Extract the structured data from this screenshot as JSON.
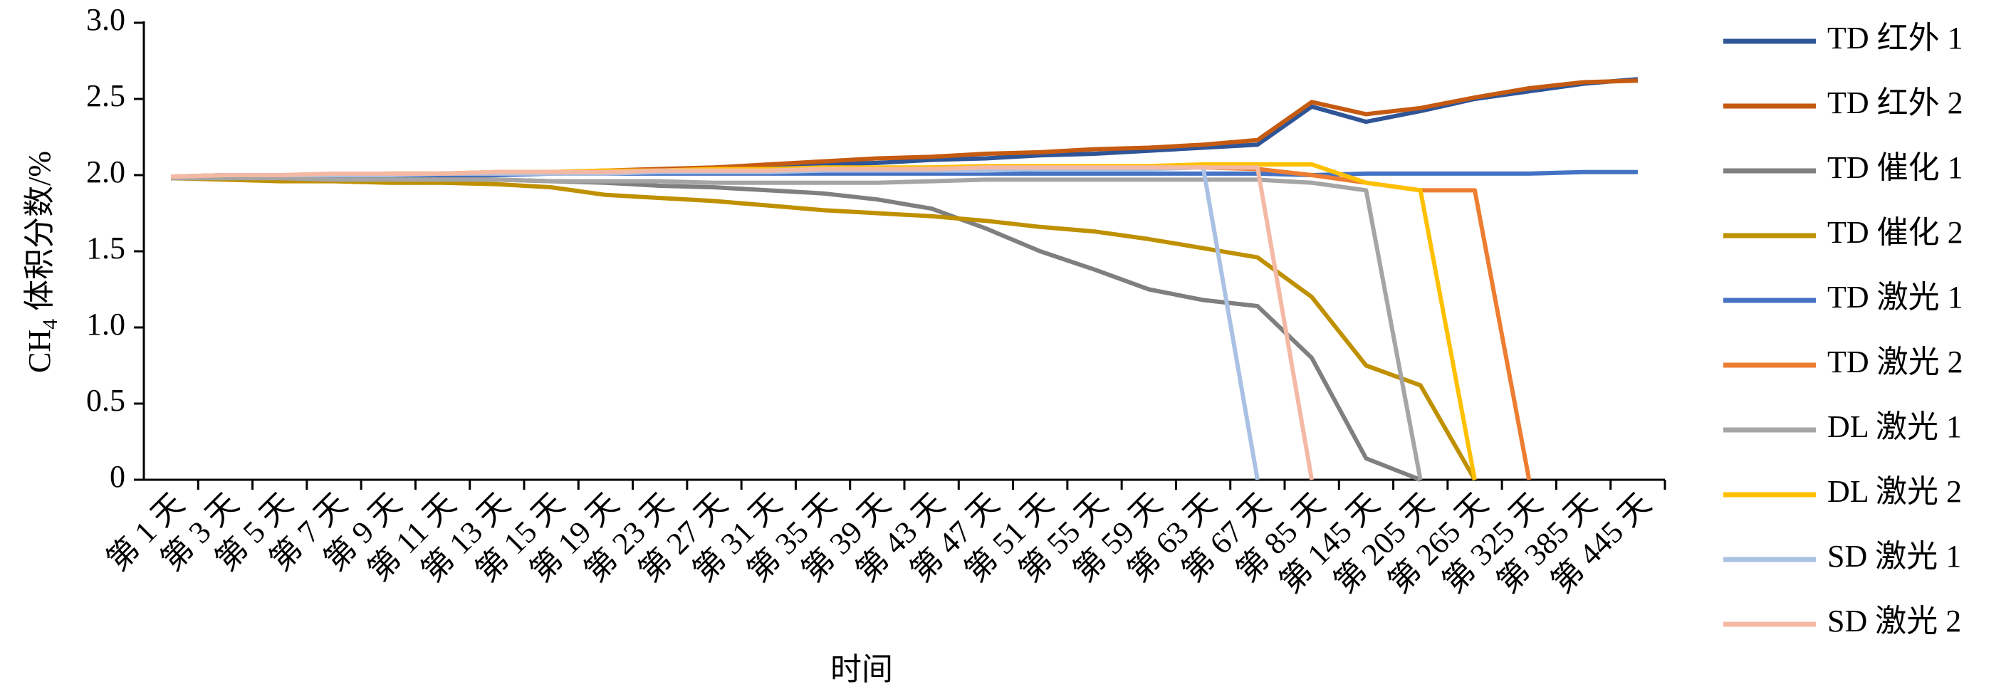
{
  "chart_data": {
    "type": "line",
    "ylabel": {
      "main": "CH",
      "sub": "4",
      "rest": " 体积分数/%"
    },
    "xlabel": "时间",
    "categories": [
      "第 1 天",
      "第 3 天",
      "第 5 天",
      "第 7 天",
      "第 9 天",
      "第 11 天",
      "第 13 天",
      "第 15 天",
      "第 19 天",
      "第 23 天",
      "第 27 天",
      "第 31 天",
      "第 35 天",
      "第 39 天",
      "第 43 天",
      "第 47 天",
      "第 51 天",
      "第 55 天",
      "第 59 天",
      "第 63 天",
      "第 67 天",
      "第 85 天",
      "第 145 天",
      "第 205 天",
      "第 265 天",
      "第 325 天",
      "第 385 天",
      "第 445 天"
    ],
    "ylim": [
      0,
      3
    ],
    "yticks": [
      0,
      0.5,
      {
        "value": 1,
        "label": "1.0"
      },
      1.5,
      {
        "value": 2,
        "label": "2.0"
      },
      2.5,
      {
        "value": 3,
        "label": "3.0"
      }
    ],
    "legend": "right",
    "series": [
      {
        "name": "TD 红外 1",
        "color": "#2f5597",
        "values": [
          1.98,
          1.99,
          1.99,
          2.0,
          2.0,
          2.0,
          2.01,
          2.01,
          2.02,
          2.03,
          2.04,
          2.05,
          2.07,
          2.08,
          2.1,
          2.11,
          2.13,
          2.14,
          2.16,
          2.18,
          2.2,
          2.45,
          2.35,
          2.42,
          2.5,
          2.55,
          2.6,
          2.63
        ]
      },
      {
        "name": "TD 红外 2",
        "color": "#c55a11",
        "values": [
          1.98,
          1.99,
          2.0,
          2.0,
          2.0,
          2.01,
          2.02,
          2.02,
          2.03,
          2.04,
          2.05,
          2.07,
          2.09,
          2.11,
          2.12,
          2.14,
          2.15,
          2.17,
          2.18,
          2.2,
          2.23,
          2.48,
          2.4,
          2.44,
          2.51,
          2.57,
          2.61,
          2.62
        ]
      },
      {
        "name": "TD 催化 1",
        "color": "#7f7f7f",
        "values": [
          1.98,
          1.98,
          1.98,
          1.98,
          1.98,
          1.98,
          1.97,
          1.96,
          1.95,
          1.93,
          1.92,
          1.9,
          1.88,
          1.84,
          1.78,
          1.65,
          1.5,
          1.38,
          1.25,
          1.18,
          1.14,
          0.8,
          0.14,
          0,
          null,
          null,
          null,
          null
        ]
      },
      {
        "name": "TD 催化 2",
        "color": "#bf9000",
        "values": [
          1.98,
          1.97,
          1.96,
          1.96,
          1.95,
          1.95,
          1.94,
          1.92,
          1.87,
          1.85,
          1.83,
          1.8,
          1.77,
          1.75,
          1.73,
          1.7,
          1.66,
          1.63,
          1.58,
          1.52,
          1.46,
          1.2,
          0.75,
          0.62,
          0,
          null,
          null,
          null
        ]
      },
      {
        "name": "TD 激光 1",
        "color": "#4472c4",
        "values": [
          1.99,
          2.0,
          2.0,
          2.0,
          2.0,
          2.0,
          2.0,
          2.01,
          2.01,
          2.01,
          2.01,
          2.01,
          2.01,
          2.01,
          2.01,
          2.01,
          2.01,
          2.01,
          2.01,
          2.01,
          2.01,
          2.0,
          2.01,
          2.01,
          2.01,
          2.01,
          2.02,
          2.02
        ]
      },
      {
        "name": "TD 激光 2",
        "color": "#ed7d31",
        "values": [
          1.99,
          2.0,
          2.0,
          2.0,
          2.01,
          2.01,
          2.01,
          2.02,
          2.02,
          2.03,
          2.03,
          2.04,
          2.04,
          2.04,
          2.05,
          2.05,
          2.05,
          2.05,
          2.05,
          2.05,
          2.04,
          2.0,
          1.95,
          1.9,
          1.9,
          0,
          null,
          null
        ]
      },
      {
        "name": "DL 激光 1",
        "color": "#a5a5a5",
        "values": [
          1.98,
          1.98,
          1.98,
          1.97,
          1.97,
          1.97,
          1.97,
          1.96,
          1.96,
          1.96,
          1.95,
          1.95,
          1.95,
          1.95,
          1.96,
          1.97,
          1.97,
          1.97,
          1.97,
          1.97,
          1.97,
          1.95,
          1.9,
          0,
          null,
          null,
          null,
          null
        ]
      },
      {
        "name": "DL 激光 2",
        "color": "#ffc000",
        "values": [
          1.99,
          2.0,
          2.0,
          2.0,
          2.01,
          2.01,
          2.02,
          2.02,
          2.03,
          2.03,
          2.04,
          2.04,
          2.05,
          2.05,
          2.05,
          2.06,
          2.06,
          2.06,
          2.06,
          2.07,
          2.07,
          2.07,
          1.95,
          1.9,
          0,
          null,
          null,
          null
        ]
      },
      {
        "name": "SD 激光 1",
        "color": "#a9c1e3",
        "values": [
          1.99,
          2.0,
          2.0,
          2.0,
          2.0,
          2.01,
          2.01,
          2.01,
          2.01,
          2.02,
          2.02,
          2.02,
          2.03,
          2.03,
          2.03,
          2.03,
          2.04,
          2.04,
          2.04,
          2.05,
          0,
          null,
          null,
          null,
          null,
          null,
          null,
          null
        ]
      },
      {
        "name": "SD 激光 2",
        "color": "#f4b9a5",
        "values": [
          1.99,
          2.0,
          2.0,
          2.01,
          2.01,
          2.01,
          2.02,
          2.02,
          2.02,
          2.03,
          2.03,
          2.03,
          2.04,
          2.04,
          2.04,
          2.05,
          2.05,
          2.05,
          2.05,
          2.05,
          2.05,
          0,
          null,
          null,
          null,
          null,
          null,
          null
        ]
      }
    ]
  }
}
